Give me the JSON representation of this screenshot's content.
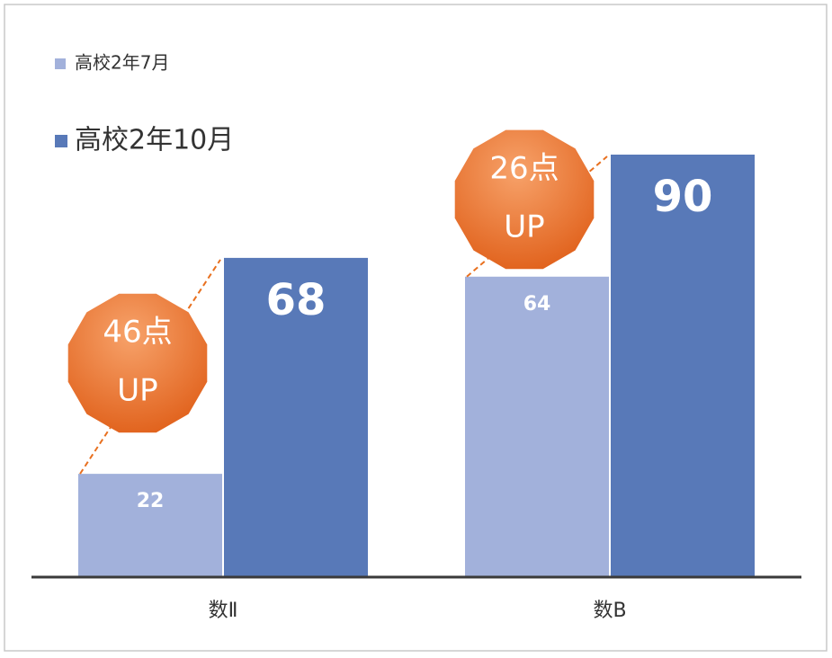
{
  "chart_data": {
    "type": "bar",
    "categories": [
      "数Ⅱ",
      "数B"
    ],
    "series": [
      {
        "name": "高校2年7月",
        "color": "#a2b1db",
        "values": [
          22,
          64
        ]
      },
      {
        "name": "高校2年10月",
        "color": "#5879b8",
        "values": [
          68,
          90
        ]
      }
    ],
    "annotations": [
      [
        "46点",
        "UP"
      ],
      [
        "26点",
        "UP"
      ]
    ],
    "annotation_color": "#e8701f"
  }
}
